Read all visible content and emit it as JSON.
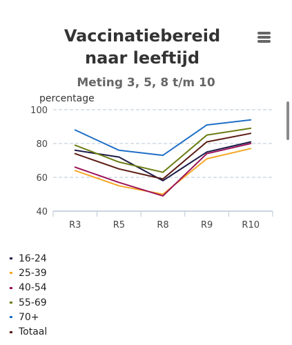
{
  "chart_data": {
    "type": "line",
    "title": "Vaccinatiebereid naar leeftijd",
    "subtitle": "Meting 3, 5, 8 t/m 10",
    "ylabel": "percentage",
    "xlabel": "",
    "categories": [
      "R3",
      "R5",
      "R8",
      "R9",
      "R10"
    ],
    "ylim": [
      40,
      100
    ],
    "yticks": [
      40,
      60,
      80,
      100
    ],
    "grid": true,
    "legend_position": "bottom-left",
    "series": [
      {
        "name": "16-24",
        "color": "#1a1a46",
        "values": [
          76,
          72,
          58,
          75,
          81
        ]
      },
      {
        "name": "25-39",
        "color": "#f5a623",
        "values": [
          64,
          55,
          50,
          71,
          77
        ]
      },
      {
        "name": "40-54",
        "color": "#9b1157",
        "values": [
          66,
          57,
          49,
          74,
          80
        ]
      },
      {
        "name": "55-69",
        "color": "#6b7d12",
        "values": [
          79,
          69,
          63,
          85,
          89
        ]
      },
      {
        "name": "70+",
        "color": "#1f6fc6",
        "values": [
          88,
          76,
          73,
          91,
          94
        ]
      },
      {
        "name": "Totaal",
        "color": "#5a1a12",
        "values": [
          74,
          65,
          59,
          81,
          86
        ]
      }
    ]
  }
}
